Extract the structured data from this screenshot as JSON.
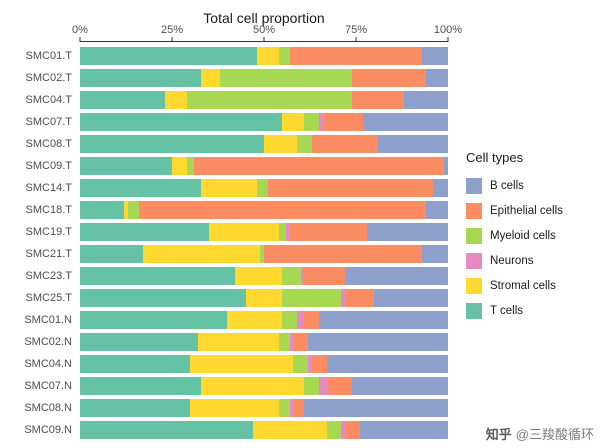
{
  "chart_data": {
    "type": "bar",
    "orientation": "horizontal-stacked",
    "title": "Total cell proportion",
    "x_ticks": [
      "0%",
      "25%",
      "50%",
      "75%",
      "100%"
    ],
    "xlim": [
      0,
      100
    ],
    "grid": false,
    "legend_position": "right",
    "categories": [
      "SMC01.T",
      "SMC02.T",
      "SMC04.T",
      "SMC07.T",
      "SMC08.T",
      "SMC09.T",
      "SMC14.T",
      "SMC18.T",
      "SMC19.T",
      "SMC21.T",
      "SMC23.T",
      "SMC25.T",
      "SMC01.N",
      "SMC02.N",
      "SMC04.N",
      "SMC07.N",
      "SMC08.N",
      "SMC09.N"
    ],
    "series": [
      {
        "name": "T cells",
        "color": "#66c2a5",
        "values": [
          48,
          33,
          23,
          55,
          50,
          25,
          33,
          12,
          35,
          17,
          42,
          45,
          40,
          32,
          30,
          33,
          30,
          47
        ]
      },
      {
        "name": "Stromal cells",
        "color": "#ffd92f",
        "values": [
          6,
          5,
          6,
          6,
          9,
          4,
          15,
          1,
          19,
          32,
          13,
          10,
          15,
          22,
          28,
          28,
          24,
          20
        ]
      },
      {
        "name": "Myeloid cells",
        "color": "#a6d854",
        "values": [
          3,
          36,
          45,
          4,
          4,
          2,
          3,
          3,
          2,
          1,
          5,
          16,
          4,
          3,
          4,
          4,
          3,
          4
        ]
      },
      {
        "name": "Neurons",
        "color": "#e78ac3",
        "values": [
          0,
          0,
          0,
          1,
          0,
          0,
          0,
          0,
          1,
          0,
          1,
          1,
          2,
          1,
          1,
          2,
          1,
          1
        ]
      },
      {
        "name": "Epithelial cells",
        "color": "#fc8d62",
        "values": [
          36,
          20,
          14,
          11,
          18,
          68,
          45,
          78,
          21,
          43,
          11,
          8,
          4,
          4,
          4,
          7,
          3,
          4
        ]
      },
      {
        "name": "B cells",
        "color": "#8da0cb",
        "values": [
          7,
          6,
          12,
          23,
          19,
          1,
          4,
          6,
          22,
          7,
          28,
          20,
          35,
          38,
          33,
          26,
          39,
          24
        ]
      }
    ]
  },
  "legend": {
    "title": "Cell types",
    "items": [
      {
        "label": "B cells",
        "color": "#8da0cb"
      },
      {
        "label": "Epithelial cells",
        "color": "#fc8d62"
      },
      {
        "label": "Myeloid cells",
        "color": "#a6d854"
      },
      {
        "label": "Neurons",
        "color": "#e78ac3"
      },
      {
        "label": "Stromal cells",
        "color": "#ffd92f"
      },
      {
        "label": "T cells",
        "color": "#66c2a5"
      }
    ]
  },
  "watermark": {
    "brand": "知乎",
    "handle": "@三羧酸循环"
  }
}
